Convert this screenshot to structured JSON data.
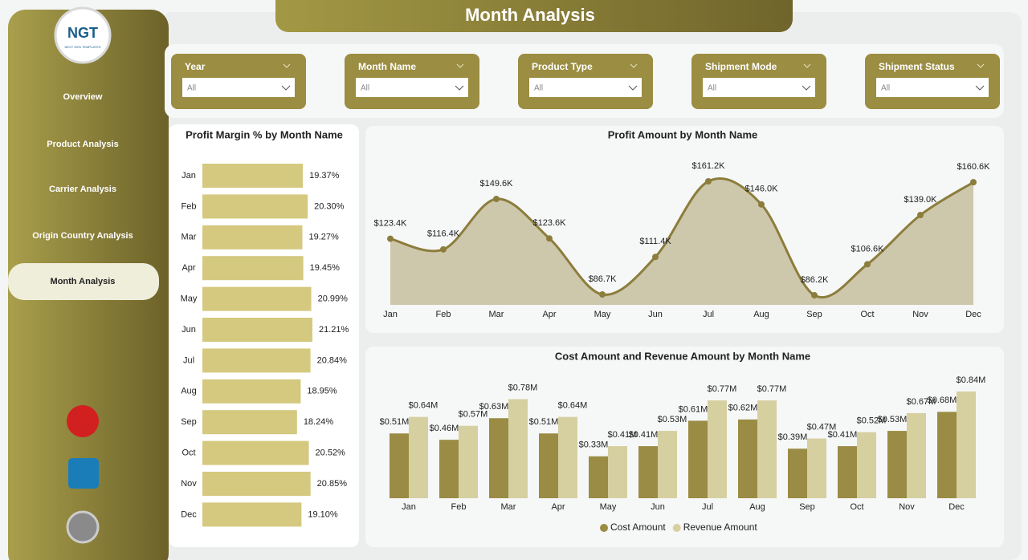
{
  "logo": {
    "name": "NGT",
    "tagline": "NEXT GEN TEMPLATES"
  },
  "nav": [
    "Overview",
    "Product Analysis",
    "Carrier Analysis",
    "Origin Country Analysis",
    "Month Analysis"
  ],
  "active_nav": 4,
  "title": "Month Analysis",
  "filters": [
    {
      "label": "Year",
      "value": "All"
    },
    {
      "label": "Month Name",
      "value": "All"
    },
    {
      "label": "Product Type",
      "value": "All"
    },
    {
      "label": "Shipment Mode",
      "value": "All"
    },
    {
      "label": "Shipment Status",
      "value": "All"
    }
  ],
  "chart_data": [
    {
      "type": "hbar",
      "title": "Profit Margin % by Month Name",
      "categories": [
        "Jan",
        "Feb",
        "Mar",
        "Apr",
        "May",
        "Jun",
        "Jul",
        "Aug",
        "Sep",
        "Oct",
        "Nov",
        "Dec"
      ],
      "values": [
        19.37,
        20.3,
        19.27,
        19.45,
        20.99,
        21.21,
        20.84,
        18.95,
        18.24,
        20.52,
        20.85,
        19.1
      ],
      "value_labels": [
        "19.37%",
        "20.30%",
        "19.27%",
        "19.45%",
        "20.99%",
        "21.21%",
        "20.84%",
        "18.95%",
        "18.24%",
        "20.52%",
        "20.85%",
        "19.10%"
      ],
      "color": "#d4c97f"
    },
    {
      "type": "area",
      "title": "Profit Amount by Month Name",
      "categories": [
        "Jan",
        "Feb",
        "Mar",
        "Apr",
        "May",
        "Jun",
        "Jul",
        "Aug",
        "Sep",
        "Oct",
        "Nov",
        "Dec"
      ],
      "values": [
        123.4,
        116.4,
        149.6,
        123.6,
        86.7,
        111.4,
        161.2,
        146.0,
        86.2,
        106.6,
        139.0,
        160.6
      ],
      "value_labels": [
        "$123.4K",
        "$116.4K",
        "$149.6K",
        "$123.6K",
        "$86.7K",
        "$111.4K",
        "$161.2K",
        "$146.0K",
        "$86.2K",
        "$106.6K",
        "$139.0K",
        "$160.6K"
      ],
      "color": "#8c7d3c",
      "fill": "#cdc7ab"
    },
    {
      "type": "grouped-bar",
      "title": "Cost Amount and Revenue Amount by Month Name",
      "categories": [
        "Jan",
        "Feb",
        "Mar",
        "Apr",
        "May",
        "Jun",
        "Jul",
        "Aug",
        "Sep",
        "Oct",
        "Nov",
        "Dec"
      ],
      "series": [
        {
          "name": "Cost Amount",
          "color": "#9b8c45",
          "values": [
            0.51,
            0.46,
            0.63,
            0.51,
            0.33,
            0.41,
            0.61,
            0.62,
            0.39,
            0.41,
            0.53,
            0.68
          ],
          "value_labels": [
            "$0.51M",
            "$0.46M",
            "$0.63M",
            "$0.51M",
            "$0.33M",
            "$0.41M",
            "$0.61M",
            "$0.62M",
            "$0.39M",
            "$0.41M",
            "$0.53M",
            "$0.68M"
          ]
        },
        {
          "name": "Revenue Amount",
          "color": "#d6cfa0",
          "values": [
            0.64,
            0.57,
            0.78,
            0.64,
            0.41,
            0.53,
            0.77,
            0.77,
            0.47,
            0.52,
            0.67,
            0.84
          ],
          "value_labels": [
            "$0.64M",
            "$0.57M",
            "$0.78M",
            "$0.64M",
            "$0.41M",
            "$0.53M",
            "$0.77M",
            "$0.77M",
            "$0.47M",
            "$0.52M",
            "$0.67M",
            "$0.84M"
          ]
        }
      ],
      "legend": "bottom"
    }
  ]
}
